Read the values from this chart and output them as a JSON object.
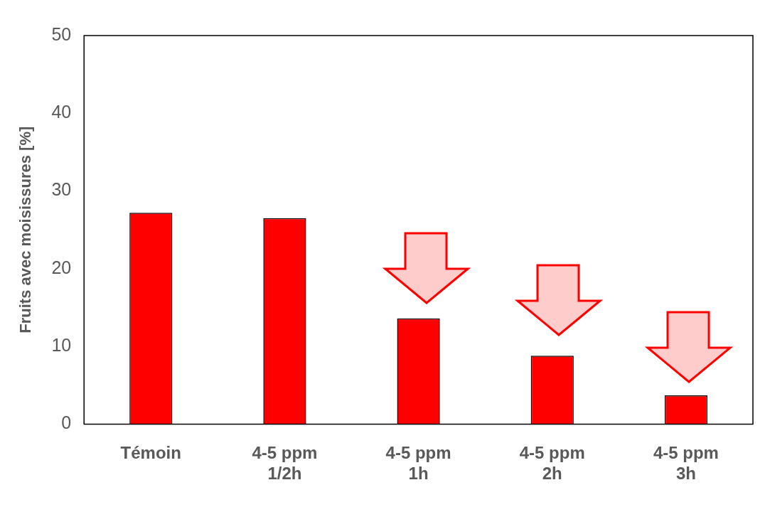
{
  "chart_data": {
    "type": "bar",
    "ylabel": "Fruits avec moisissures [%]",
    "categories": [
      "Témoin",
      "4-5 ppm\n1/2h",
      "4-5 ppm\n1h",
      "4-5 ppm\n2h",
      "4-5 ppm\n3h"
    ],
    "values": [
      27.2,
      26.5,
      13.6,
      8.8,
      3.7
    ],
    "color": "#ff0000",
    "ylim": [
      0,
      50
    ],
    "yticks": [
      0,
      10,
      20,
      30,
      40,
      50
    ],
    "grid": false,
    "legend": false
  }
}
